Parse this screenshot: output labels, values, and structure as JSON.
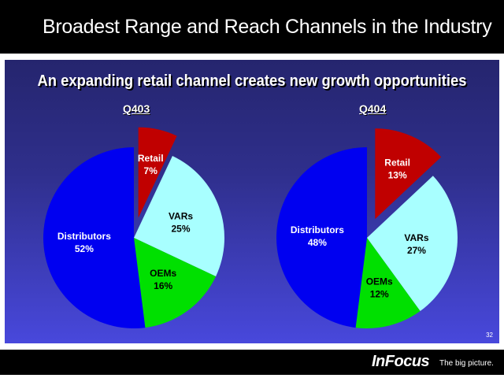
{
  "title": "Broadest Range and Reach Channels in the Industry",
  "subtitle": "An expanding retail channel creates new growth opportunities",
  "slide_number": "32",
  "footer": {
    "logo": "InFocus",
    "tagline": "The big picture."
  },
  "chart_data": [
    {
      "type": "pie",
      "title": "Q403",
      "categories": [
        "Retail",
        "VARs",
        "OEMs",
        "Distributors"
      ],
      "values": [
        7,
        25,
        16,
        52
      ],
      "labels": [
        "7%",
        "25%",
        "16%",
        "52%"
      ],
      "colors": [
        "#c00000",
        "#a8ffff",
        "#00e000",
        "#0000f0"
      ],
      "exploded": [
        "Retail"
      ]
    },
    {
      "type": "pie",
      "title": "Q404",
      "categories": [
        "Retail",
        "VARs",
        "OEMs",
        "Distributors"
      ],
      "values": [
        13,
        27,
        12,
        48
      ],
      "labels": [
        "13%",
        "27%",
        "12%",
        "48%"
      ],
      "colors": [
        "#c00000",
        "#a8ffff",
        "#00e000",
        "#0000f0"
      ],
      "exploded": [
        "Retail"
      ]
    }
  ]
}
